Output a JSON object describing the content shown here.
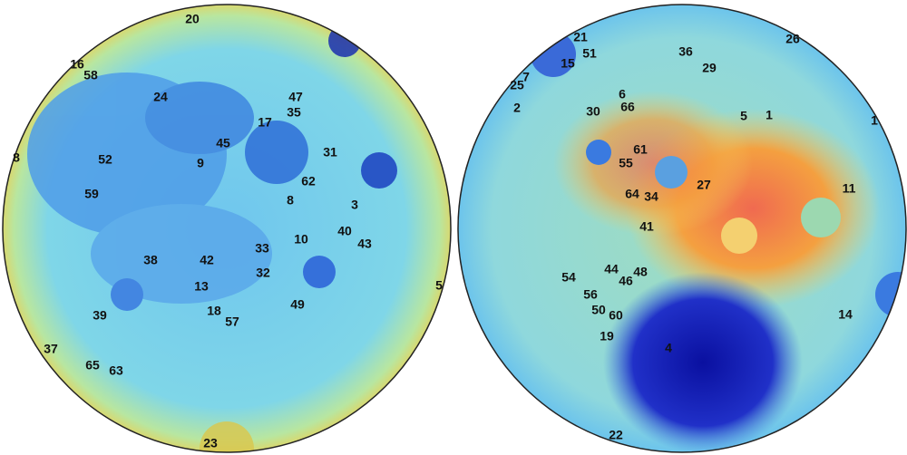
{
  "hemispheres": [
    {
      "labels": [
        "20",
        "16",
        "58",
        "24",
        "47",
        "35",
        "17",
        "45",
        "31",
        "9",
        "52",
        "8",
        "62",
        "59",
        "8",
        "3",
        "40",
        "10",
        "43",
        "33",
        "38",
        "42",
        "32",
        "13",
        "5",
        "49",
        "18",
        "57",
        "39",
        "37",
        "65",
        "63",
        "23"
      ]
    },
    {
      "labels": [
        "21",
        "51",
        "15",
        "36",
        "26",
        "29",
        "7",
        "25",
        "2",
        "6",
        "66",
        "30",
        "5",
        "1",
        "1",
        "61",
        "55",
        "27",
        "11",
        "64",
        "34",
        "41",
        "44",
        "48",
        "46",
        "54",
        "56",
        "50",
        "60",
        "14",
        "19",
        "4",
        "22"
      ]
    }
  ]
}
